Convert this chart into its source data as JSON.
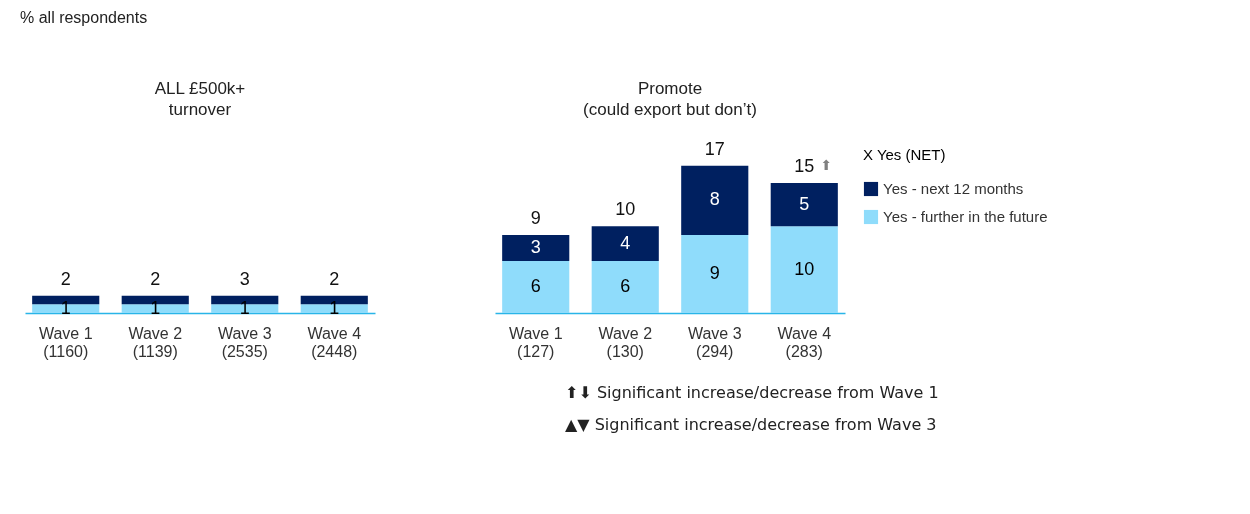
{
  "chart_data": [
    {
      "type": "bar",
      "title": "ALL £500k+\nturnover",
      "stacked": true,
      "legend": false,
      "grid": false,
      "categories": [
        "Wave 1\n(1160)",
        "Wave 2\n(1139)",
        "Wave 3\n(2535)",
        "Wave 4\n(2448)"
      ],
      "series": [
        {
          "color": "#8fdcfb",
          "values": [
            1,
            1,
            1,
            1
          ],
          "value_labels": [
            "1",
            "1",
            "1",
            "1"
          ]
        },
        {
          "color": "#002060",
          "values": [
            1,
            1,
            1,
            1
          ],
          "value_labels": [
            null,
            null,
            null,
            null
          ]
        }
      ],
      "totals": [
        "2",
        "2",
        "3",
        "2"
      ],
      "annotations": [
        "% all respondents"
      ]
    },
    {
      "type": "bar",
      "title": "Promote\n(could export but don’t)",
      "stacked": true,
      "data_labels": true,
      "legend": "right",
      "grid": false,
      "legend_title": "X Yes (NET)",
      "categories": [
        "Wave 1\n(127)",
        "Wave 2\n(130)",
        "Wave 3\n(294)",
        "Wave 4\n(283)"
      ],
      "series": [
        {
          "name": "Yes - further in the future",
          "color": "#8fdcfb",
          "values": [
            6,
            6,
            9,
            10
          ]
        },
        {
          "name": "Yes - next 12 months",
          "color": "#002060",
          "values": [
            3,
            4,
            8,
            5
          ]
        }
      ],
      "totals": [
        "9",
        "10",
        "17",
        "15"
      ],
      "annotations": [
        "⬆",
        "⬆⬇ Significant increase/decrease from Wave 1",
        "▲▼ Significant increase/decrease from Wave 3"
      ]
    }
  ]
}
